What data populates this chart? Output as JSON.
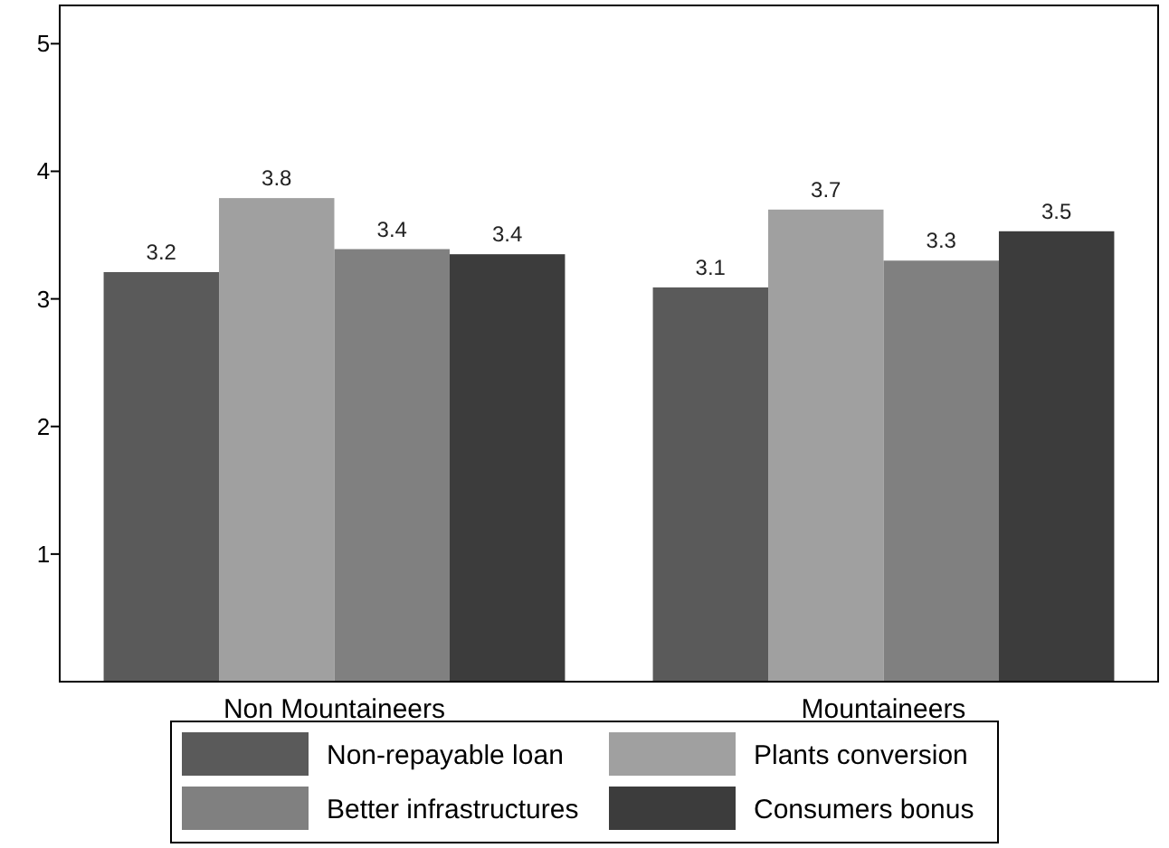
{
  "chart_data": {
    "type": "bar",
    "categories": [
      "Non Mountaineers",
      "Mountaineers"
    ],
    "series": [
      {
        "name": "Non-repayable loan",
        "color": "#5a5a5a",
        "values": [
          3.21,
          3.09
        ],
        "value_labels": [
          "3.2",
          "3.1"
        ]
      },
      {
        "name": "Plants conversion",
        "color": "#a0a0a0",
        "values": [
          3.79,
          3.7
        ],
        "value_labels": [
          "3.8",
          "3.7"
        ]
      },
      {
        "name": "Better infrastructures",
        "color": "#808080",
        "values": [
          3.39,
          3.3
        ],
        "value_labels": [
          "3.4",
          "3.3"
        ]
      },
      {
        "name": "Consumers bonus",
        "color": "#3c3c3c",
        "values": [
          3.35,
          3.53
        ],
        "value_labels": [
          "3.4",
          "3.5"
        ]
      }
    ],
    "ylim": [
      0,
      5.3
    ],
    "yticks": [
      1,
      2,
      3,
      4,
      5
    ],
    "grid": false,
    "legend": "bottom"
  }
}
